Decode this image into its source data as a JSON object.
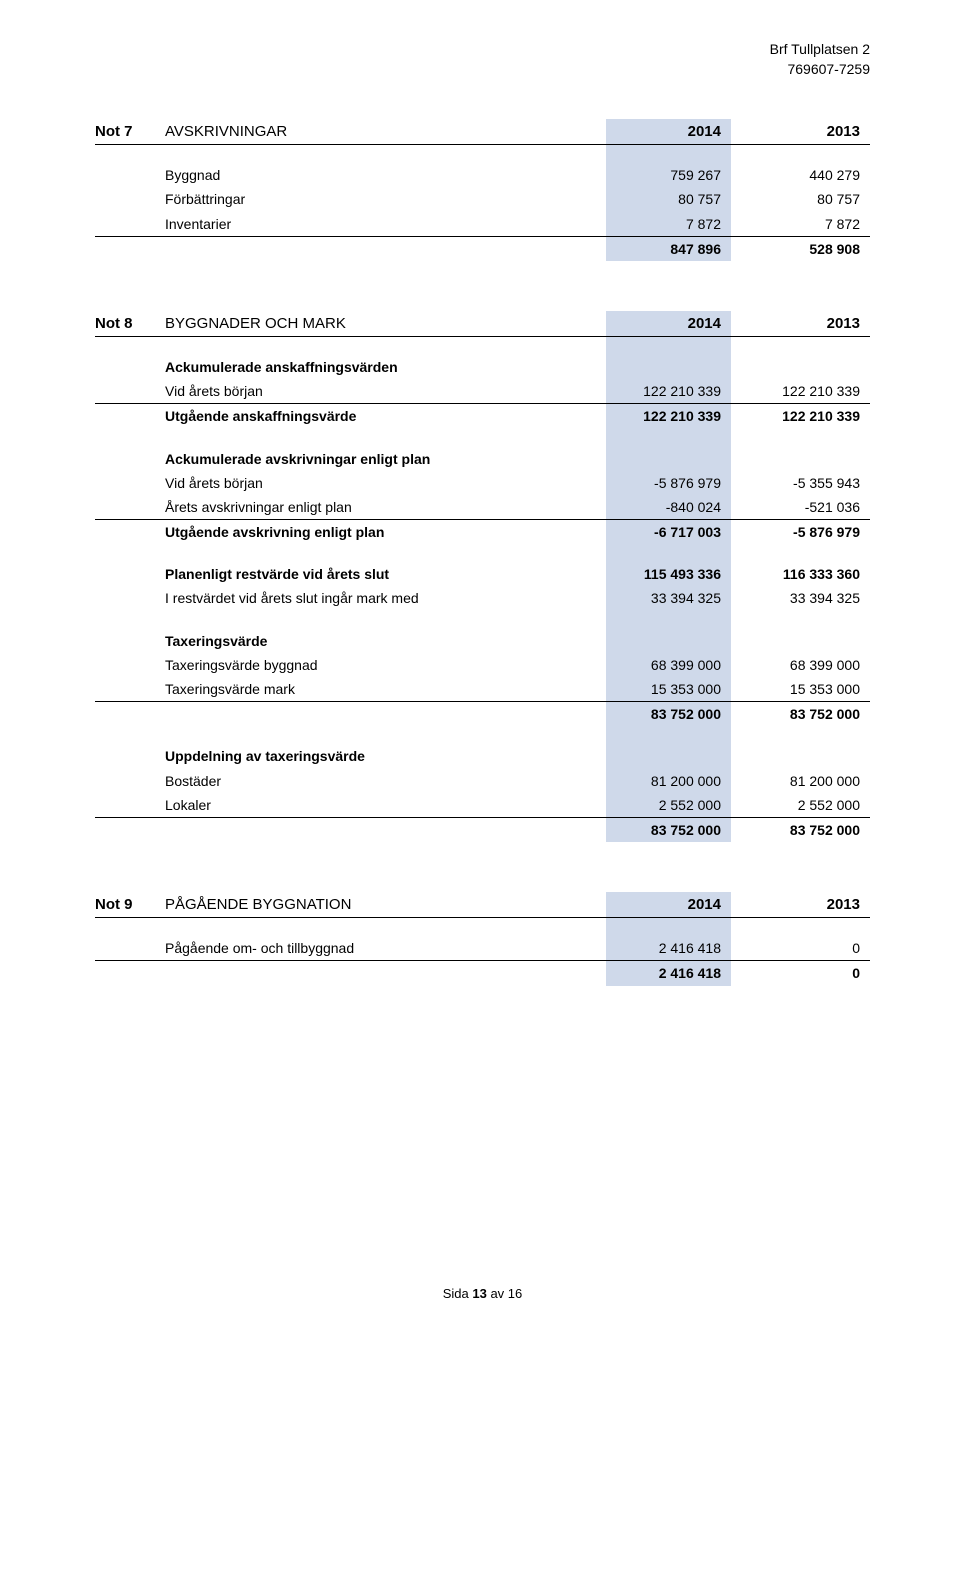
{
  "header": {
    "company": "Brf Tullplatsen 2",
    "orgnr": "769607-7259"
  },
  "note7": {
    "key": "Not 7",
    "title": "AVSKRIVNINGAR",
    "year1": "2014",
    "year2": "2013",
    "rows": [
      {
        "label": "Byggnad",
        "v1": "759 267",
        "v2": "440 279"
      },
      {
        "label": "Förbättringar",
        "v1": "80 757",
        "v2": "80 757"
      },
      {
        "label": "Inventarier",
        "v1": "7 872",
        "v2": "7 872"
      }
    ],
    "total": {
      "label": "",
      "v1": "847 896",
      "v2": "528 908"
    }
  },
  "note8": {
    "key": "Not 8",
    "title": "BYGGNADER OCH MARK",
    "year1": "2014",
    "year2": "2013",
    "sec1_header": "Ackumulerade anskaffningsvärden",
    "sec1_rows": [
      {
        "label": "Vid årets början",
        "v1": "122 210 339",
        "v2": "122 210 339"
      }
    ],
    "sec1_total": {
      "label": "Utgående anskaffningsvärde",
      "v1": "122 210 339",
      "v2": "122 210 339"
    },
    "sec2_header": "Ackumulerade avskrivningar enligt plan",
    "sec2_rows": [
      {
        "label": "Vid årets början",
        "v1": "-5 876 979",
        "v2": "-5 355 943"
      },
      {
        "label": "Årets avskrivningar enligt plan",
        "v1": "-840 024",
        "v2": "-521 036"
      }
    ],
    "sec2_total": {
      "label": "Utgående avskrivning enligt plan",
      "v1": "-6 717 003",
      "v2": "-5 876 979"
    },
    "sec3_rows": [
      {
        "label": "Planenligt restvärde vid årets slut",
        "v1": "115 493 336",
        "v2": "116 333 360",
        "bold": true
      },
      {
        "label": "I restvärdet vid årets slut ingår mark med",
        "v1": "33 394 325",
        "v2": "33 394 325"
      }
    ],
    "sec4_header": "Taxeringsvärde",
    "sec4_rows": [
      {
        "label": "Taxeringsvärde byggnad",
        "v1": "68 399 000",
        "v2": "68 399 000"
      },
      {
        "label": "Taxeringsvärde mark",
        "v1": "15 353 000",
        "v2": "15 353 000"
      }
    ],
    "sec4_total": {
      "label": "",
      "v1": "83 752 000",
      "v2": "83 752 000"
    },
    "sec5_header": "Uppdelning av taxeringsvärde",
    "sec5_rows": [
      {
        "label": "Bostäder",
        "v1": "81 200 000",
        "v2": "81 200 000"
      },
      {
        "label": "Lokaler",
        "v1": "2 552 000",
        "v2": "2 552 000"
      }
    ],
    "sec5_total": {
      "label": "",
      "v1": "83 752 000",
      "v2": "83 752 000"
    }
  },
  "note9": {
    "key": "Not 9",
    "title": "PÅGÅENDE BYGGNATION",
    "year1": "2014",
    "year2": "2013",
    "rows": [
      {
        "label": "Pågående om- och tillbyggnad",
        "v1": "2 416 418",
        "v2": "0"
      }
    ],
    "total": {
      "label": "",
      "v1": "2 416 418",
      "v2": "0"
    }
  },
  "footer": {
    "prefix": "Sida ",
    "page": "13",
    "middle": " av ",
    "total": "16"
  }
}
